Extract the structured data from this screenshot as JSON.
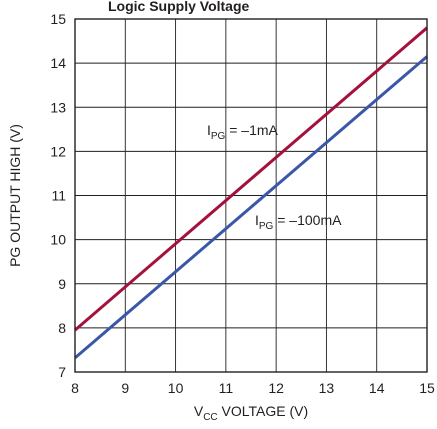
{
  "header_fragment": "Logic Supply Voltage",
  "chart_data": {
    "type": "line",
    "title": "",
    "xlabel": {
      "main": "V",
      "sub": "CC",
      "rest": " VOLTAGE (V)"
    },
    "ylabel": "PG OUTPUT HIGH (V)",
    "xlim": [
      8,
      15
    ],
    "ylim": [
      7,
      15
    ],
    "xticks": [
      8,
      9,
      10,
      11,
      12,
      13,
      14,
      15
    ],
    "yticks": [
      7,
      8,
      9,
      10,
      11,
      12,
      13,
      14,
      15
    ],
    "xtick_labels": [
      "8",
      "9",
      "10",
      "11",
      "12",
      "13",
      "14",
      "15"
    ],
    "ytick_labels": [
      "7",
      "8",
      "9",
      "10",
      "11",
      "12",
      "13",
      "14",
      "15"
    ],
    "grid": true,
    "series": [
      {
        "name": "IPG = –1mA",
        "label": {
          "main": "I",
          "sub": "PG",
          "rest": " = –1mA"
        },
        "color": "#a3123a",
        "x": [
          8,
          15
        ],
        "y": [
          7.95,
          14.8
        ]
      },
      {
        "name": "IPG = –100mA",
        "label": {
          "main": "I",
          "sub": "PG",
          "rest": " = –100mA"
        },
        "color": "#3b57a8",
        "x": [
          8,
          15
        ],
        "y": [
          7.32,
          14.15
        ]
      }
    ]
  }
}
